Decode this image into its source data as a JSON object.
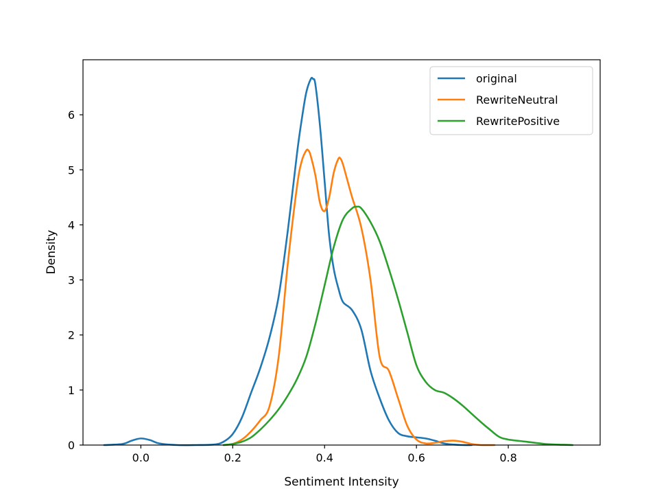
{
  "chart_data": {
    "type": "line",
    "xlabel": "Sentiment Intensity",
    "ylabel": "Density",
    "xlim": [
      -0.126,
      1.0
    ],
    "ylim": [
      0,
      7
    ],
    "xticks": [
      "0.0",
      "0.2",
      "0.4",
      "0.6",
      "0.8"
    ],
    "xtick_values": [
      0.0,
      0.2,
      0.4,
      0.6,
      0.8
    ],
    "yticks": [
      "0",
      "1",
      "2",
      "3",
      "4",
      "5",
      "6"
    ],
    "ytick_values": [
      0,
      1,
      2,
      3,
      4,
      5,
      6
    ],
    "grid": false,
    "legend_position": "top-right",
    "series": [
      {
        "name": "original",
        "color": "#1f77b4",
        "x": [
          -0.08,
          -0.04,
          -0.02,
          0.0,
          0.02,
          0.04,
          0.08,
          0.12,
          0.16,
          0.18,
          0.2,
          0.22,
          0.24,
          0.26,
          0.28,
          0.3,
          0.32,
          0.34,
          0.35,
          0.36,
          0.37,
          0.375,
          0.38,
          0.39,
          0.4,
          0.41,
          0.42,
          0.43,
          0.44,
          0.46,
          0.48,
          0.5,
          0.52,
          0.54,
          0.56,
          0.58,
          0.6,
          0.62,
          0.64,
          0.66,
          0.68,
          0.7,
          0.72
        ],
        "y": [
          0.0,
          0.02,
          0.08,
          0.12,
          0.09,
          0.03,
          0.0,
          0.0,
          0.01,
          0.06,
          0.2,
          0.5,
          0.95,
          1.4,
          1.95,
          2.7,
          3.9,
          5.3,
          5.9,
          6.4,
          6.65,
          6.65,
          6.55,
          5.8,
          4.8,
          3.8,
          3.2,
          2.85,
          2.6,
          2.45,
          2.1,
          1.35,
          0.85,
          0.45,
          0.22,
          0.16,
          0.14,
          0.12,
          0.08,
          0.03,
          0.01,
          0.0,
          0.0
        ]
      },
      {
        "name": "RewriteNeutral",
        "color": "#ff7f0e",
        "x": [
          0.18,
          0.2,
          0.22,
          0.24,
          0.26,
          0.28,
          0.3,
          0.32,
          0.34,
          0.35,
          0.36,
          0.365,
          0.37,
          0.38,
          0.39,
          0.4,
          0.41,
          0.42,
          0.43,
          0.435,
          0.44,
          0.45,
          0.46,
          0.48,
          0.5,
          0.52,
          0.54,
          0.56,
          0.58,
          0.6,
          0.62,
          0.64,
          0.66,
          0.68,
          0.7,
          0.72,
          0.74,
          0.77
        ],
        "y": [
          0.0,
          0.02,
          0.1,
          0.25,
          0.45,
          0.7,
          1.6,
          3.3,
          4.7,
          5.15,
          5.35,
          5.35,
          5.25,
          4.9,
          4.4,
          4.25,
          4.5,
          4.95,
          5.2,
          5.2,
          5.1,
          4.8,
          4.5,
          3.95,
          3.0,
          1.6,
          1.35,
          0.85,
          0.35,
          0.1,
          0.03,
          0.04,
          0.07,
          0.08,
          0.06,
          0.02,
          0.0,
          0.0
        ]
      },
      {
        "name": "RewritePositive",
        "color": "#2ca02c",
        "x": [
          0.18,
          0.2,
          0.22,
          0.24,
          0.26,
          0.28,
          0.3,
          0.32,
          0.34,
          0.36,
          0.38,
          0.4,
          0.42,
          0.44,
          0.46,
          0.47,
          0.48,
          0.5,
          0.52,
          0.54,
          0.56,
          0.58,
          0.6,
          0.62,
          0.64,
          0.66,
          0.68,
          0.7,
          0.72,
          0.74,
          0.76,
          0.78,
          0.8,
          0.84,
          0.88,
          0.92,
          0.94
        ],
        "y": [
          0.0,
          0.02,
          0.06,
          0.14,
          0.28,
          0.45,
          0.65,
          0.9,
          1.2,
          1.6,
          2.2,
          2.9,
          3.6,
          4.1,
          4.3,
          4.33,
          4.3,
          4.05,
          3.7,
          3.2,
          2.65,
          2.05,
          1.45,
          1.15,
          1.0,
          0.95,
          0.85,
          0.72,
          0.57,
          0.42,
          0.28,
          0.15,
          0.1,
          0.06,
          0.02,
          0.005,
          0.0
        ]
      }
    ]
  }
}
